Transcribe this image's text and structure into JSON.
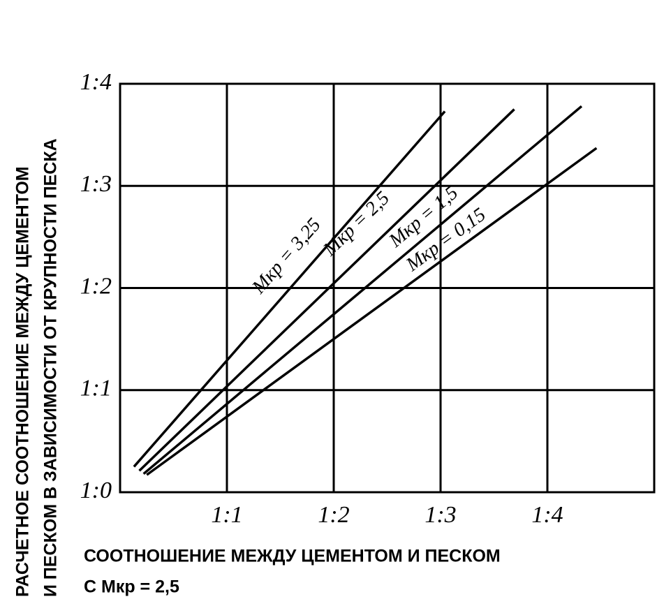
{
  "chart_data": {
    "type": "line",
    "xlabel": [
      "СООТНОШЕНИЕ МЕЖДУ ЦЕМЕНТОМ И ПЕСКОМ",
      "С Mкр = 2,5"
    ],
    "ylabel": [
      "РАСЧЕТНОЕ СООТНОШЕНИЕ МЕЖДУ ЦЕМЕНТОМ",
      "И ПЕСКОМ В ЗАВИСИМОСТИ ОТ КРУПНОСТИ ПЕСКА"
    ],
    "xlim": [
      0,
      5
    ],
    "ylim": [
      0,
      4
    ],
    "xticks": [
      {
        "value": 1,
        "label": "1:1"
      },
      {
        "value": 2,
        "label": "1:2"
      },
      {
        "value": 3,
        "label": "1:3"
      },
      {
        "value": 4,
        "label": "1:4"
      }
    ],
    "yticks": [
      {
        "value": 0,
        "label": "1:0"
      },
      {
        "value": 1,
        "label": "1:1"
      },
      {
        "value": 2,
        "label": "1:2"
      },
      {
        "value": 3,
        "label": "1:3"
      },
      {
        "value": 4,
        "label": "1:4"
      }
    ],
    "grid": true,
    "series": [
      {
        "name": "Mкр = 3,25",
        "color": "#000000",
        "x": [
          0.13,
          3.04
        ],
        "values": [
          0.25,
          3.73
        ]
      },
      {
        "name": "Mкр = 2,5",
        "color": "#000000",
        "x": [
          0.18,
          3.69
        ],
        "values": [
          0.21,
          3.75
        ]
      },
      {
        "name": "Mкр = 1,5",
        "color": "#000000",
        "x": [
          0.22,
          4.32
        ],
        "values": [
          0.18,
          3.78
        ]
      },
      {
        "name": "Mкр = 0,15",
        "color": "#000000",
        "x": [
          0.25,
          4.46
        ],
        "values": [
          0.17,
          3.37
        ]
      }
    ]
  }
}
